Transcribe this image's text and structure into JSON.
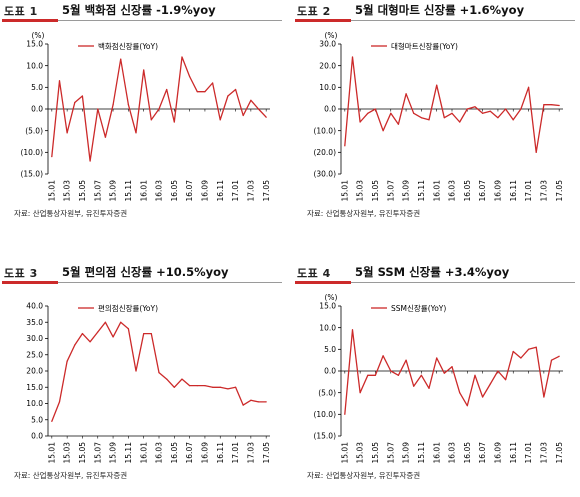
{
  "source_note": "자료: 산업통상자원부, 유진투자증권",
  "chart_data": [
    {
      "type": "line",
      "tag": "도표 1",
      "title": "5월 백화점 신장률 -1.9%yoy",
      "unit": "(%)",
      "ylim": [
        -15,
        15
      ],
      "yticks": [
        "(15.0)",
        "(10.0)",
        "(5.0)",
        "0.0",
        "5.0",
        "10.0",
        "15.0"
      ],
      "xticks": [
        "15.01",
        "15.03",
        "15.05",
        "15.07",
        "15.09",
        "15.11",
        "16.01",
        "16.03",
        "16.05",
        "16.07",
        "16.09",
        "16.11",
        "17.01",
        "17.03",
        "17.05"
      ],
      "color": "#cc2a2a",
      "grid": false,
      "legend_position": "top",
      "series": [
        {
          "name": "백화점신장률(YoY)",
          "values": [
            -11,
            6.5,
            -5.5,
            1.5,
            3,
            -12,
            0,
            -6.5,
            1,
            11.5,
            1,
            -5.5,
            9,
            -2.5,
            0,
            4.5,
            -3,
            12,
            7.5,
            4,
            4,
            6,
            -2.5,
            3,
            4.5,
            -1.5,
            2,
            0,
            -1.9
          ]
        }
      ]
    },
    {
      "type": "line",
      "tag": "도표 2",
      "title": "5월 대형마트 신장률 +1.6%yoy",
      "unit": "(%)",
      "ylim": [
        -30,
        30
      ],
      "yticks": [
        "(30.0)",
        "(20.0)",
        "(10.0)",
        "0.0",
        "10.0",
        "20.0",
        "30.0"
      ],
      "xticks": [
        "15.01",
        "15.03",
        "15.05",
        "15.07",
        "15.09",
        "15.11",
        "16.01",
        "16.03",
        "16.05",
        "16.07",
        "16.09",
        "16.11",
        "17.01",
        "17.03",
        "17.05"
      ],
      "color": "#cc2a2a",
      "grid": false,
      "legend_position": "top",
      "series": [
        {
          "name": "대형마트신장률(YoY)",
          "values": [
            -17,
            24,
            -6,
            -2,
            0,
            -10,
            -2,
            -7,
            7,
            -2,
            -4,
            -5,
            11,
            -4,
            -2,
            -6,
            0,
            1,
            -2,
            -1,
            -4,
            0,
            -5,
            0,
            10,
            -20,
            2,
            2,
            1.6
          ]
        }
      ]
    },
    {
      "type": "line",
      "tag": "도표 3",
      "title": "5월 편의점 신장률 +10.5%yoy",
      "unit": "",
      "ylim": [
        0,
        40
      ],
      "yticks": [
        "0.0",
        "5.0",
        "10.0",
        "15.0",
        "20.0",
        "25.0",
        "30.0",
        "35.0",
        "40.0"
      ],
      "xticks": [
        "15.01",
        "15.03",
        "15.05",
        "15.07",
        "15.09",
        "15.11",
        "16.01",
        "16.03",
        "16.05",
        "16.07",
        "16.09",
        "16.11",
        "17.01",
        "17.03",
        "17.05"
      ],
      "color": "#cc2a2a",
      "grid": false,
      "legend_position": "top",
      "series": [
        {
          "name": "편의점신장률(YoY)",
          "values": [
            4.5,
            10.5,
            23,
            28,
            31.5,
            29,
            32,
            35,
            30.5,
            35,
            33,
            20,
            31.5,
            31.5,
            19.5,
            17.5,
            15,
            17.5,
            15.5,
            15.5,
            15.5,
            15,
            15,
            14.5,
            15,
            9.5,
            11,
            10.5,
            10.5
          ]
        }
      ]
    },
    {
      "type": "line",
      "tag": "도표 4",
      "title": "5월 SSM 신장률 +3.4%yoy",
      "unit": "(%)",
      "ylim": [
        -15,
        15
      ],
      "yticks": [
        "(15.0)",
        "(10.0)",
        "(5.0)",
        "0.0",
        "5.0",
        "10.0",
        "15.0"
      ],
      "xticks": [
        "15.01",
        "15.03",
        "15.05",
        "15.07",
        "15.09",
        "15.11",
        "16.01",
        "16.03",
        "16.05",
        "16.07",
        "16.09",
        "16.11",
        "17.01",
        "17.03",
        "17.05"
      ],
      "color": "#cc2a2a",
      "grid": false,
      "legend_position": "top",
      "series": [
        {
          "name": "SSM신장률(YoY)",
          "values": [
            -10,
            9.5,
            -5,
            -1,
            -1,
            3.5,
            0,
            -1,
            2.5,
            -3.5,
            -1,
            -4,
            3,
            -0.5,
            1,
            -5,
            -8,
            -1,
            -6,
            -3,
            0,
            -2,
            4.5,
            3,
            5,
            5.5,
            -6,
            2.5,
            3.4
          ]
        }
      ]
    }
  ]
}
